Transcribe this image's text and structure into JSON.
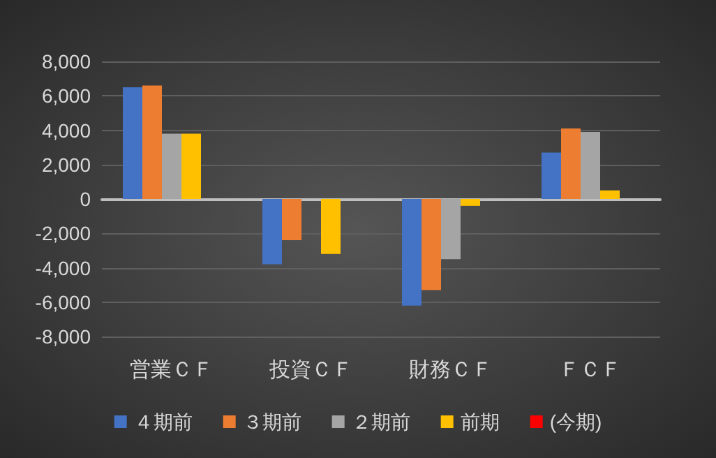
{
  "chart_data": {
    "type": "bar",
    "categories": [
      "営業ＣＦ",
      "投資ＣＦ",
      "財務ＣＦ",
      "ＦＣＦ"
    ],
    "series": [
      {
        "name": "４期前",
        "color": "#4472c4",
        "values": [
          6500,
          -3800,
          -6200,
          2700
        ]
      },
      {
        "name": "３期前",
        "color": "#ed7d31",
        "values": [
          6600,
          -2400,
          -5300,
          4100
        ]
      },
      {
        "name": "２期前",
        "color": "#a5a5a5",
        "values": [
          3800,
          null,
          -3500,
          3900
        ]
      },
      {
        "name": "前期",
        "color": "#ffc000",
        "values": [
          3800,
          -3200,
          -400,
          500
        ]
      },
      {
        "name": "(今期)",
        "color": "#ff0000",
        "values": [
          null,
          null,
          null,
          null
        ]
      }
    ],
    "ylim": [
      -8000,
      8000
    ],
    "yticks": [
      {
        "value": -8000,
        "label": "-8,000"
      },
      {
        "value": -6000,
        "label": "-6,000"
      },
      {
        "value": -4000,
        "label": "-4,000"
      },
      {
        "value": -2000,
        "label": "-2,000"
      },
      0,
      {
        "value": 2000,
        "label": "2,000"
      },
      {
        "value": 4000,
        "label": "4,000"
      },
      {
        "value": 6000,
        "label": "6,000"
      },
      {
        "value": 8000,
        "label": "8,000"
      }
    ],
    "grid": "y",
    "legend": "bottom"
  }
}
